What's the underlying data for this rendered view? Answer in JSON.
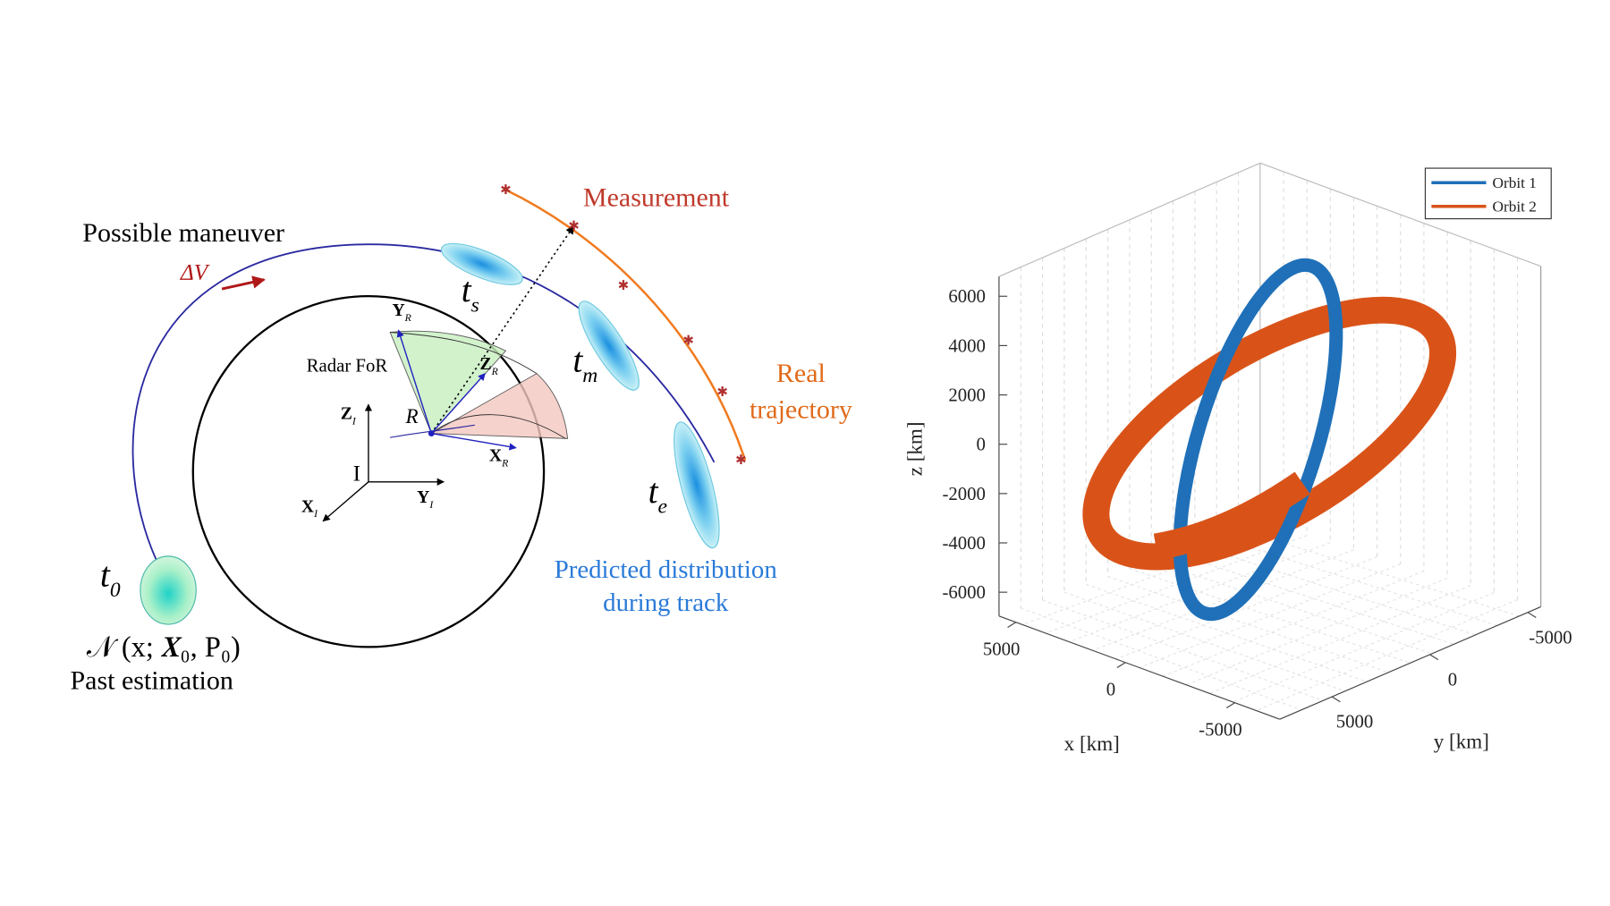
{
  "diagram": {
    "maneuver_label": "Possible maneuver",
    "delta_v": "ΔV",
    "measurement_label": "Measurement",
    "real_trajectory": [
      "Real",
      "trajectory"
    ],
    "predicted": [
      "Predicted distribution",
      "during track"
    ],
    "epochs": [
      {
        "t": "t",
        "sub": "s"
      },
      {
        "t": "t",
        "sub": "m"
      },
      {
        "t": "t",
        "sub": "e"
      },
      {
        "t": "t",
        "sub": "0"
      }
    ],
    "prior": "𝒩 (x; 𝑿₀, P₀)",
    "past": "Past estimation",
    "radar": "Radar FoR",
    "origin": "I",
    "radar_origin": "R",
    "axes": [
      {
        "base": "Z",
        "sub": "I"
      },
      {
        "base": "Y",
        "sub": "I"
      },
      {
        "base": "X",
        "sub": "I"
      },
      {
        "base": "Y",
        "sub": "R"
      },
      {
        "base": "Z",
        "sub": "R"
      },
      {
        "base": "X",
        "sub": "R"
      }
    ]
  },
  "plot": {
    "legend": [
      {
        "name": "Orbit 1",
        "color": "#1f70b8"
      },
      {
        "name": "Orbit 2",
        "color": "#d95319"
      }
    ],
    "zticks": [
      6000,
      4000,
      2000,
      0,
      -2000,
      -4000,
      -6000
    ],
    "xticks": [
      5000,
      0,
      -5000
    ],
    "yticks": [
      -5000,
      0,
      5000
    ],
    "xlabel": "x [km]",
    "ylabel": "y [km]",
    "zlabel": "z [km]"
  }
}
